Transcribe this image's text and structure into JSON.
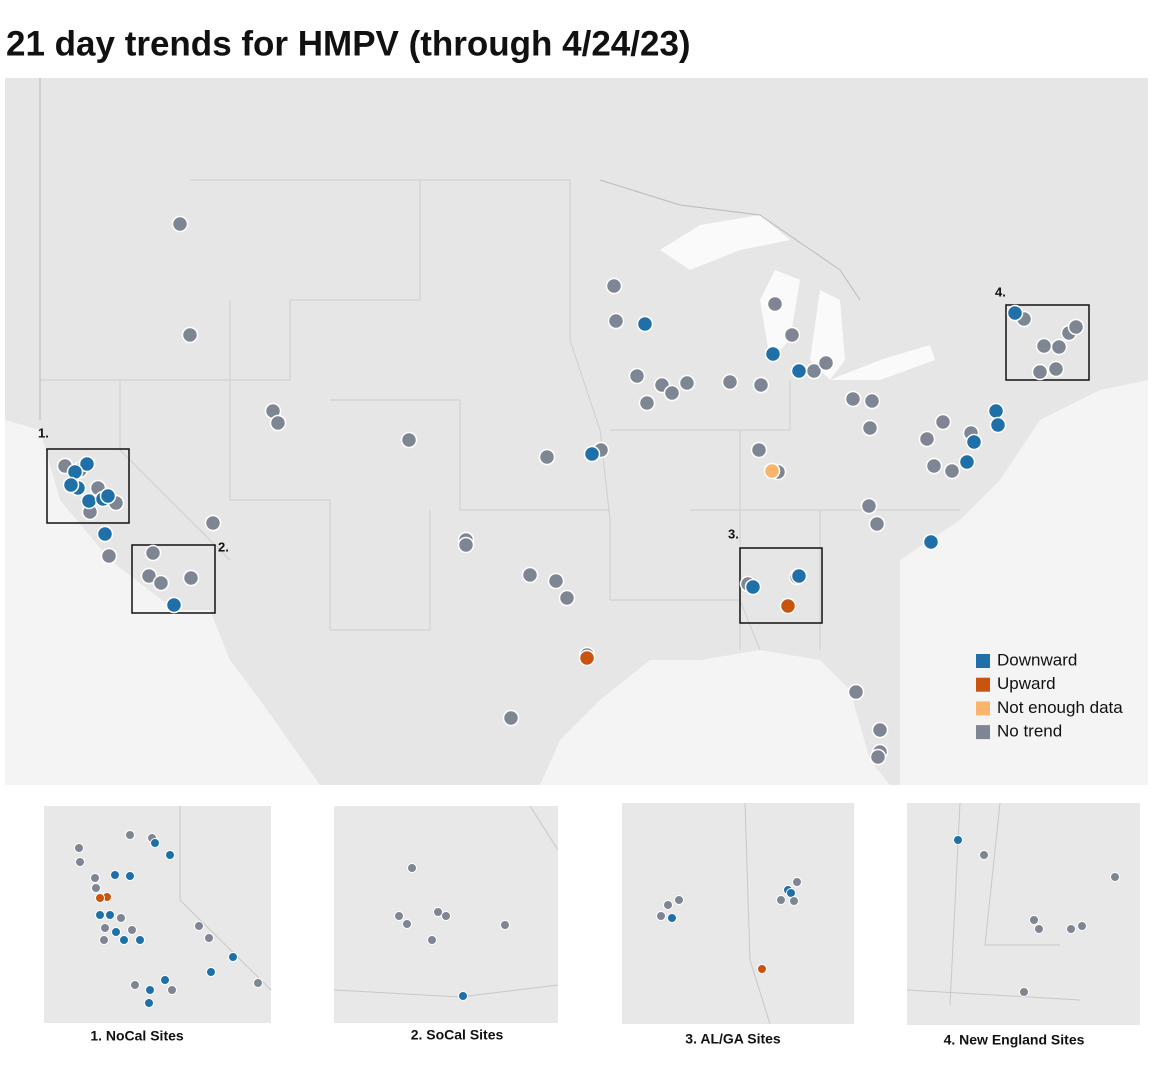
{
  "title": "21 day trends for HMPV (through 4/24/23)",
  "legend": [
    {
      "label": "Downward",
      "color": "#1f6fa9"
    },
    {
      "label": "Upward",
      "color": "#c8540f"
    },
    {
      "label": "Not enough data",
      "color": "#fbb46b"
    },
    {
      "label": "No trend",
      "color": "#7e8593"
    }
  ],
  "region_labels": [
    "1.",
    "2.",
    "3.",
    "4."
  ],
  "inset_captions": [
    "1. NoCal Sites",
    "2. SoCal Sites",
    "3. AL/GA Sites",
    "4. New England Sites"
  ]
}
